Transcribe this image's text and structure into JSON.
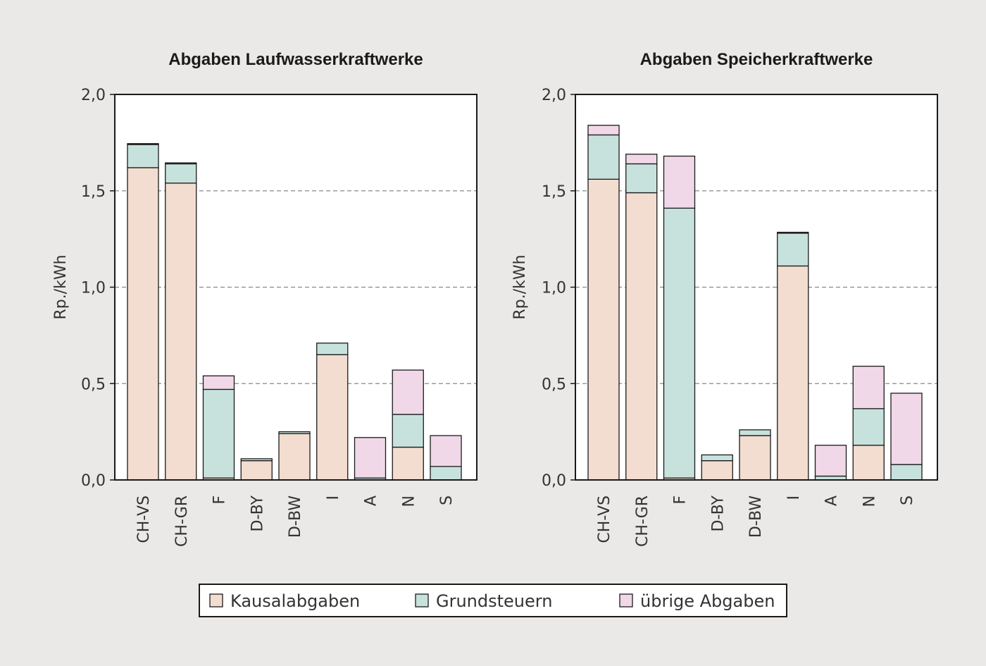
{
  "colors": {
    "background": "#ebe9e7",
    "kausal": "#f3ddd0",
    "grund": "#c7e2dc",
    "uebrige": "#f1d8e8",
    "stroke": "#1a1a1a",
    "grid": "#8a8a8a"
  },
  "legend": {
    "items": [
      {
        "key": "kausal",
        "label": "Kausalabgaben"
      },
      {
        "key": "grund",
        "label": "Grundsteuern"
      },
      {
        "key": "uebrige",
        "label": "übrige Abgaben"
      }
    ]
  },
  "chart_data": [
    {
      "type": "bar",
      "stacked": true,
      "title": "Abgaben Laufwasserkraftwerke",
      "ylabel": "Rp./kWh",
      "ylim": [
        0,
        2.0
      ],
      "yticks": [
        "0,0",
        "0,5",
        "1,0",
        "1,5",
        "2,0"
      ],
      "ytick_values": [
        0,
        0.5,
        1.0,
        1.5,
        2.0
      ],
      "grid": "dashed at 0.5, 1.0, 1.5",
      "categories": [
        "CH-VS",
        "CH-GR",
        "F",
        "D-BY",
        "D-BW",
        "I",
        "A",
        "N",
        "S"
      ],
      "series": [
        {
          "name": "Kausalabgaben",
          "key": "kausal",
          "values": [
            1.62,
            1.54,
            0.01,
            0.1,
            0.24,
            0.65,
            0.0,
            0.17,
            0.0
          ]
        },
        {
          "name": "Grundsteuern",
          "key": "grund",
          "values": [
            0.12,
            0.1,
            0.46,
            0.01,
            0.01,
            0.06,
            0.01,
            0.17,
            0.07
          ]
        },
        {
          "name": "übrige Abgaben",
          "key": "uebrige",
          "values": [
            0.005,
            0.005,
            0.07,
            0.0,
            0.0,
            0.0,
            0.21,
            0.23,
            0.16
          ]
        }
      ]
    },
    {
      "type": "bar",
      "stacked": true,
      "title": "Abgaben Speicherkraftwerke",
      "ylabel": "Rp./kWh",
      "ylim": [
        0,
        2.0
      ],
      "yticks": [
        "0,0",
        "0,5",
        "1,0",
        "1,5",
        "2,0"
      ],
      "ytick_values": [
        0,
        0.5,
        1.0,
        1.5,
        2.0
      ],
      "grid": "dashed at 0.5, 1.0, 1.5",
      "categories": [
        "CH-VS",
        "CH-GR",
        "F",
        "D-BY",
        "D-BW",
        "I",
        "A",
        "N",
        "S"
      ],
      "series": [
        {
          "name": "Kausalabgaben",
          "key": "kausal",
          "values": [
            1.56,
            1.49,
            0.01,
            0.1,
            0.23,
            1.11,
            0.0,
            0.18,
            0.0
          ]
        },
        {
          "name": "Grundsteuern",
          "key": "grund",
          "values": [
            0.23,
            0.15,
            1.4,
            0.03,
            0.03,
            0.17,
            0.02,
            0.19,
            0.08
          ]
        },
        {
          "name": "übrige Abgaben",
          "key": "uebrige",
          "values": [
            0.05,
            0.05,
            0.27,
            0.0,
            0.0,
            0.005,
            0.16,
            0.22,
            0.37
          ]
        }
      ]
    }
  ]
}
